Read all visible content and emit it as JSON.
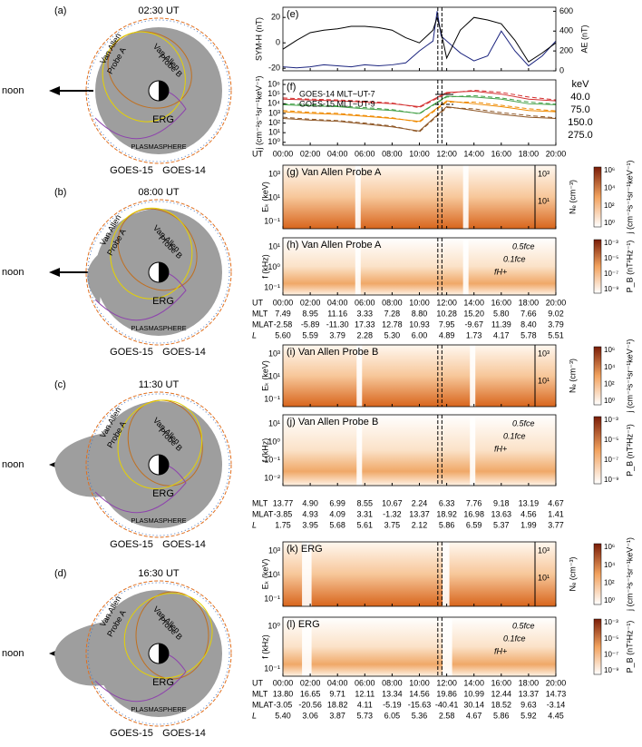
{
  "diagrams": [
    {
      "label": "(a)",
      "time": "02:30 UT",
      "noon": "noon",
      "plasmasphere": "PLASMASPHERE",
      "probe_a": [
        "Van Allen",
        "Probe A"
      ],
      "probe_b": [
        "Van Allen",
        "Probe B"
      ],
      "erg": "ERG",
      "goes15": "GOES-15",
      "goes14": "GOES-14"
    },
    {
      "label": "(b)",
      "time": "08:00 UT",
      "noon": "noon",
      "plasmasphere": "PLASMASPHERE",
      "probe_a": [
        "Van Allen",
        "Probe A"
      ],
      "probe_b": [
        "Van Allen",
        "Probe B"
      ],
      "erg": "ERG",
      "goes15": "GOES-15",
      "goes14": "GOES-14"
    },
    {
      "label": "(c)",
      "time": "11:30 UT",
      "noon": "noon",
      "plasmasphere": "PLASMASPHERE",
      "probe_a": [
        "Van Allen",
        "Probe A"
      ],
      "probe_b": [
        "Van Allen",
        "Probe B"
      ],
      "erg": "ERG",
      "goes15": "GOES-15",
      "goes14": "GOES-14"
    },
    {
      "label": "(d)",
      "time": "16:30 UT",
      "noon": "noon",
      "plasmasphere": "PLASMASPHERE",
      "probe_a": [
        "Van Allen",
        "Probe A"
      ],
      "probe_b": [
        "Van Allen",
        "Probe B"
      ],
      "erg": "ERG",
      "goes15": "GOES-15",
      "goes14": "GOES-14"
    }
  ],
  "ut_label": "UT",
  "ut_ticks": [
    "00:00",
    "02:00",
    "04:00",
    "06:00",
    "08:00",
    "10:00",
    "12:00",
    "14:00",
    "16:00",
    "18:00",
    "20:00"
  ],
  "panel_e": {
    "label": "(e)",
    "ylabel": "SYM-H (nT)",
    "y2label": "AE (nT)",
    "ylim": [
      -22,
      28
    ],
    "yticks": [
      -20,
      0,
      20
    ],
    "y2lim": [
      0,
      640
    ],
    "y2ticks": [
      0,
      200,
      400,
      600
    ],
    "x": [
      0,
      1,
      2,
      3,
      4,
      5,
      6,
      7,
      8,
      9,
      10,
      10.5,
      11,
      11.3,
      11.6,
      12,
      13,
      14,
      15,
      16,
      17,
      18,
      19,
      20
    ],
    "symh": [
      -5,
      2,
      8,
      10,
      11,
      13,
      13,
      12,
      10,
      4,
      0,
      5,
      10,
      20,
      8,
      -12,
      10,
      20,
      18,
      15,
      2,
      -15,
      -8,
      0
    ],
    "symh_color": "#000000",
    "ae": [
      40,
      30,
      40,
      60,
      50,
      40,
      60,
      50,
      60,
      80,
      200,
      250,
      300,
      600,
      350,
      300,
      180,
      100,
      150,
      400,
      200,
      50,
      150,
      300
    ],
    "ae_color": "#1a237e"
  },
  "panel_f": {
    "label": "(f)",
    "ylabel": "j (cm⁻²s⁻¹sr⁻¹keV⁻¹)",
    "log": true,
    "ylim": [
      0.5,
      3000000
    ],
    "yticks": [
      {
        "value": 1,
        "label": "10⁰"
      },
      {
        "value": 10,
        "label": "10¹"
      },
      {
        "value": 100,
        "label": "10²"
      },
      {
        "value": 1000,
        "label": "10³"
      },
      {
        "value": 10000,
        "label": "10⁴"
      },
      {
        "value": 100000,
        "label": "10⁵"
      },
      {
        "value": 1000000,
        "label": "10⁶"
      }
    ],
    "legend_solid": "GOES-14 MLT~UT-7",
    "legend_dashed": "GOES-15 MLT~UT-9",
    "energy_unit": "keV",
    "x": [
      0,
      2,
      4,
      6,
      8,
      10,
      12,
      14,
      16,
      18,
      20
    ],
    "series": [
      {
        "name": "40.0",
        "color": "#d32f2f",
        "values": [
          30000,
          25000,
          20000,
          15000,
          10000,
          5000,
          150000,
          200000,
          100000,
          30000,
          20000
        ],
        "goes15": [
          40000,
          30000,
          25000,
          18000,
          12000,
          4000,
          120000,
          250000,
          150000,
          50000,
          25000
        ]
      },
      {
        "name": "75.0",
        "color": "#43a047",
        "values": [
          8000,
          6000,
          5000,
          3000,
          2000,
          1000,
          60000,
          50000,
          30000,
          10000,
          8000
        ],
        "goes15": [
          10000,
          8000,
          6000,
          4000,
          2500,
          900,
          50000,
          70000,
          40000,
          15000,
          9000
        ]
      },
      {
        "name": "150.0",
        "color": "#ef8a00",
        "values": [
          1500,
          1000,
          800,
          500,
          300,
          150,
          20000,
          10000,
          5000,
          2000,
          1500
        ],
        "goes15": [
          2000,
          1300,
          1000,
          600,
          350,
          120,
          15000,
          15000,
          7000,
          3000,
          1800
        ]
      },
      {
        "name": "275.0",
        "color": "#8d5524",
        "values": [
          300,
          200,
          150,
          80,
          40,
          15,
          5000,
          2000,
          800,
          400,
          300
        ],
        "goes15": [
          400,
          250,
          180,
          100,
          50,
          12,
          4000,
          3000,
          1200,
          600,
          350
        ]
      }
    ]
  },
  "spectra": [
    {
      "label": "(g) Van Allen Probe A",
      "ylabel": "Eₖ (keV)",
      "yticks": [
        "10³",
        "10¹",
        "10⁻¹"
      ],
      "cbar_label": "j (cm⁻²s⁻¹sr⁻¹keV⁻¹)",
      "cbar_ticks": [
        "10⁶",
        "10⁴",
        "10²",
        "10⁰"
      ],
      "ne_label": "Nₑ (cm⁻³)",
      "ne_ticks": [
        "10³",
        "10¹"
      ]
    },
    {
      "label": "(h) Van Allen Probe A",
      "ylabel": "f (kHz)",
      "yticks": [
        "10¹",
        "10⁰",
        "10⁻¹"
      ],
      "cbar_label": "P_B (nT²Hz⁻¹)",
      "cbar_ticks": [
        "10⁻³",
        "10⁻⁵",
        "10⁻⁷",
        "10⁻⁹"
      ],
      "lines": [
        "0.5fce",
        "0.1fce",
        "fH+"
      ]
    },
    {
      "label": "(i) Van Allen Probe B",
      "ylabel": "Eₖ (keV)",
      "yticks": [
        "10³",
        "10¹",
        "10⁻¹"
      ],
      "cbar_label": "j (cm⁻²s⁻¹sr⁻¹keV⁻¹)",
      "cbar_ticks": [
        "10⁶",
        "10⁴",
        "10²",
        "10⁰"
      ],
      "ne_label": "Nₑ (cm⁻³)",
      "ne_ticks": [
        "10³",
        "10¹"
      ]
    },
    {
      "label": "(j) Van Allen Probe B",
      "ylabel": "f (kHz)",
      "yticks": [
        "10¹",
        "10⁰",
        "10⁻¹",
        "10⁻²"
      ],
      "cbar_label": "P_B (nT²Hz⁻¹)",
      "cbar_ticks": [
        "10⁻³",
        "10⁻⁵",
        "10⁻⁷",
        "10⁻⁹"
      ],
      "lines": [
        "0.5fce",
        "0.1fce",
        "fH+"
      ]
    },
    {
      "label": "(k) ERG",
      "ylabel": "Eₖ (keV)",
      "yticks": [
        "10³",
        "10¹",
        "10⁻¹"
      ],
      "cbar_label": "j (cm⁻²s⁻¹sr⁻¹keV⁻¹)",
      "cbar_ticks": [
        "10⁶",
        "10⁴",
        "10²",
        "10⁰"
      ],
      "ne_label": "Nₑ (cm⁻³)",
      "ne_ticks": [
        "10³",
        "10¹"
      ]
    },
    {
      "label": "(l) ERG",
      "ylabel": "f (kHz)",
      "yticks": [
        "10⁰",
        "10⁻¹"
      ],
      "cbar_label": "P_B (nT²Hz⁻¹)",
      "cbar_ticks": [
        "10⁻³",
        "10⁻⁵",
        "10⁻⁷",
        "10⁻⁹"
      ],
      "lines": [
        "0.5fce",
        "0.1fce",
        "fH+"
      ]
    }
  ],
  "tables": [
    {
      "rows": [
        {
          "label": "MLT",
          "values": [
            "7.49",
            "8.95",
            "11.16",
            "3.33",
            "7.28",
            "8.80",
            "10.28",
            "15.20",
            "5.80",
            "7.66",
            "9.02"
          ]
        },
        {
          "label": "MLAT",
          "values": [
            "-2.58",
            "-5.89",
            "-11.30",
            "17.33",
            "12.78",
            "10.93",
            "7.95",
            "-9.67",
            "11.39",
            "8.40",
            "3.79"
          ]
        },
        {
          "label": "L",
          "values": [
            "5.60",
            "5.59",
            "3.79",
            "2.28",
            "5.30",
            "6.00",
            "4.89",
            "1.73",
            "4.17",
            "5.78",
            "5.51"
          ]
        }
      ]
    },
    {
      "rows": [
        {
          "label": "MLT",
          "values": [
            "13.77",
            "4.90",
            "6.99",
            "8.55",
            "10.67",
            "2.24",
            "6.33",
            "7.76",
            "9.18",
            "13.19",
            "4.67"
          ]
        },
        {
          "label": "MLAT",
          "values": [
            "-3.85",
            "4.93",
            "4.09",
            "3.31",
            "-1.32",
            "13.37",
            "18.92",
            "16.98",
            "13.63",
            "4.56",
            "1.41"
          ]
        },
        {
          "label": "L",
          "values": [
            "1.75",
            "3.95",
            "5.68",
            "5.61",
            "3.75",
            "2.12",
            "5.86",
            "6.59",
            "5.37",
            "1.99",
            "3.77"
          ]
        }
      ]
    },
    {
      "rows": [
        {
          "label": "MLT",
          "values": [
            "13.80",
            "16.65",
            "9.71",
            "12.11",
            "13.34",
            "14.56",
            "19.86",
            "10.99",
            "12.44",
            "13.37",
            "14.73"
          ]
        },
        {
          "label": "MLAT",
          "values": [
            "-3.05",
            "-20.56",
            "18.82",
            "4.11",
            "-5.19",
            "-15.63",
            "-40.41",
            "30.14",
            "18.52",
            "9.63",
            "-3.14"
          ]
        },
        {
          "label": "L",
          "values": [
            "5.40",
            "3.06",
            "3.87",
            "5.73",
            "6.05",
            "5.36",
            "2.58",
            "4.67",
            "5.86",
            "5.92",
            "4.45"
          ]
        }
      ]
    }
  ]
}
